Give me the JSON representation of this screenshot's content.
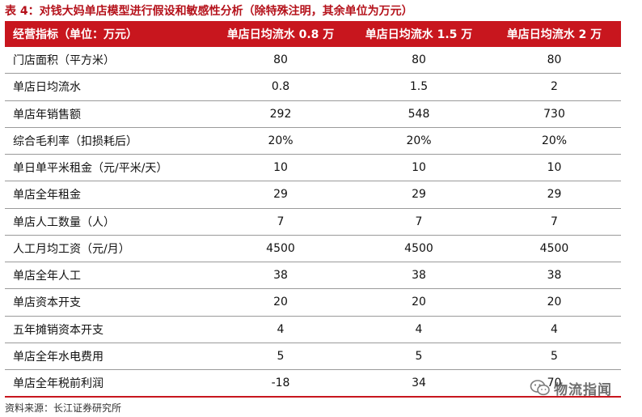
{
  "caption": "表 4：对钱大妈单店模型进行假设和敏感性分析（除特殊注明，其余单位为万元）",
  "table": {
    "headers": [
      "经营指标（单位：万元）",
      "单店日均流水 0.8 万",
      "单店日均流水 1.5 万",
      "单店日均流水 2 万"
    ],
    "rows": [
      {
        "label": "门店面积（平方米）",
        "values": [
          "80",
          "80",
          "80"
        ]
      },
      {
        "label": "单店日均流水",
        "values": [
          "0.8",
          "1.5",
          "2"
        ]
      },
      {
        "label": "单店年销售额",
        "values": [
          "292",
          "548",
          "730"
        ]
      },
      {
        "label": "综合毛利率（扣损耗后）",
        "values": [
          "20%",
          "20%",
          "20%"
        ]
      },
      {
        "label": "单日单平米租金（元/平米/天）",
        "values": [
          "10",
          "10",
          "10"
        ]
      },
      {
        "label": "单店全年租金",
        "values": [
          "29",
          "29",
          "29"
        ]
      },
      {
        "label": "单店人工数量（人）",
        "values": [
          "7",
          "7",
          "7"
        ]
      },
      {
        "label": "人工月均工资（元/月）",
        "values": [
          "4500",
          "4500",
          "4500"
        ]
      },
      {
        "label": "单店全年人工",
        "values": [
          "38",
          "38",
          "38"
        ]
      },
      {
        "label": "单店资本开支",
        "values": [
          "20",
          "20",
          "20"
        ]
      },
      {
        "label": "五年摊销资本开支",
        "values": [
          "4",
          "4",
          "4"
        ]
      },
      {
        "label": "单店全年水电费用",
        "values": [
          "5",
          "5",
          "5"
        ]
      },
      {
        "label": "单店全年税前利润",
        "values": [
          "-18",
          "34",
          "70"
        ]
      }
    ]
  },
  "source": "资料来源：长江证券研究所",
  "watermark": {
    "text": "物流指闻",
    "icon": "wechat-icon"
  }
}
